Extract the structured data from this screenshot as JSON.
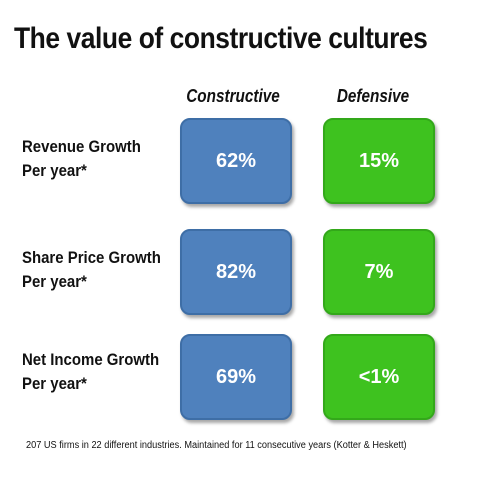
{
  "title": "The value of constructive cultures",
  "columns": {
    "constructive": "Constructive",
    "defensive": "Defensive"
  },
  "colors": {
    "constructive": "#4f81bd",
    "defensive": "#3ec21f"
  },
  "rows": [
    {
      "line1": "Revenue Growth",
      "line2": "Per year*",
      "constructive": "62%",
      "defensive": "15%"
    },
    {
      "line1": "Share Price Growth",
      "line2": "Per year*",
      "constructive": "82%",
      "defensive": "7%"
    },
    {
      "line1": "Net Income Growth",
      "line2": "Per year*",
      "constructive": "69%",
      "defensive": "<1%"
    }
  ],
  "footnote": "207 US firms in 22 different industries. Maintained for 11 consecutive years (Kotter & Heskett)"
}
